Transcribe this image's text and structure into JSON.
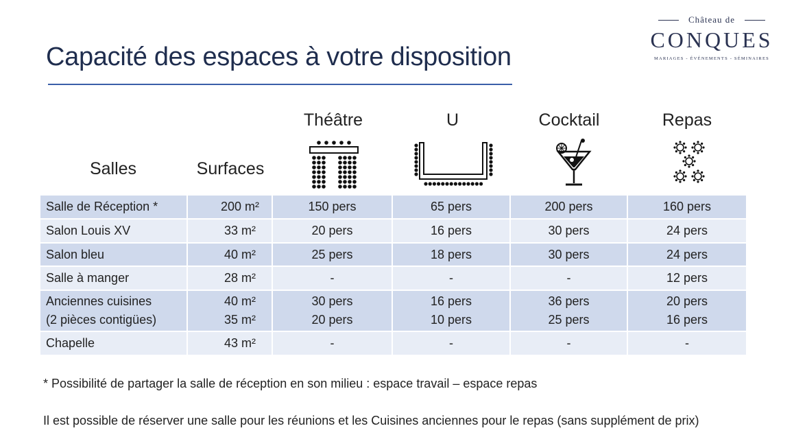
{
  "title": "Capacité des espaces à votre disposition",
  "logo": {
    "top": "Château de",
    "main": "CONQUES",
    "sub": "MARIAGES - ÉVÉNEMENTS - SÉMINAIRES"
  },
  "headers": {
    "salles": "Salles",
    "surfaces": "Surfaces",
    "theatre": "Théâtre",
    "u": "U",
    "cocktail": "Cocktail",
    "repas": "Repas"
  },
  "rows": [
    {
      "salle": [
        "Salle de Réception *"
      ],
      "surface": [
        "200 m²"
      ],
      "theatre": [
        "150 pers"
      ],
      "u": [
        "65 pers"
      ],
      "cocktail": [
        "200 pers"
      ],
      "repas": [
        "160 pers"
      ]
    },
    {
      "salle": [
        "Salon Louis XV"
      ],
      "surface": [
        "33 m²"
      ],
      "theatre": [
        "20 pers"
      ],
      "u": [
        "16 pers"
      ],
      "cocktail": [
        "30 pers"
      ],
      "repas": [
        "24 pers"
      ]
    },
    {
      "salle": [
        "Salon bleu"
      ],
      "surface": [
        "40 m²"
      ],
      "theatre": [
        "25 pers"
      ],
      "u": [
        "18 pers"
      ],
      "cocktail": [
        "30 pers"
      ],
      "repas": [
        "24 pers"
      ]
    },
    {
      "salle": [
        "Salle à manger"
      ],
      "surface": [
        "28 m²"
      ],
      "theatre": [
        "-"
      ],
      "u": [
        "-"
      ],
      "cocktail": [
        "-"
      ],
      "repas": [
        "12 pers"
      ]
    },
    {
      "salle": [
        "Anciennes cuisines",
        "(2 pièces contigües)"
      ],
      "surface": [
        "40 m²",
        "35 m²"
      ],
      "theatre": [
        "30 pers",
        "20 pers"
      ],
      "u": [
        "16 pers",
        "10 pers"
      ],
      "cocktail": [
        "36 pers",
        "25 pers"
      ],
      "repas": [
        "20 pers",
        "16 pers"
      ]
    },
    {
      "salle": [
        "Chapelle"
      ],
      "surface": [
        "43 m²"
      ],
      "theatre": [
        "-"
      ],
      "u": [
        "-"
      ],
      "cocktail": [
        "-"
      ],
      "repas": [
        "-"
      ]
    }
  ],
  "footnote": "* Possibilité de partager la salle de réception en son milieu : espace travail – espace repas",
  "note": "Il est possible de réserver une salle pour les réunions et les Cuisines anciennes pour le repas (sans supplément de prix)",
  "icons": {
    "theatre": "theatre-layout-icon",
    "u": "u-shape-layout-icon",
    "cocktail": "cocktail-glass-icon",
    "repas": "banquet-tables-icon"
  },
  "colors": {
    "title": "#1f2d4e",
    "rule": "#3a5ea8",
    "row_dark": "#cfd9ec",
    "row_light": "#e8edf6"
  }
}
